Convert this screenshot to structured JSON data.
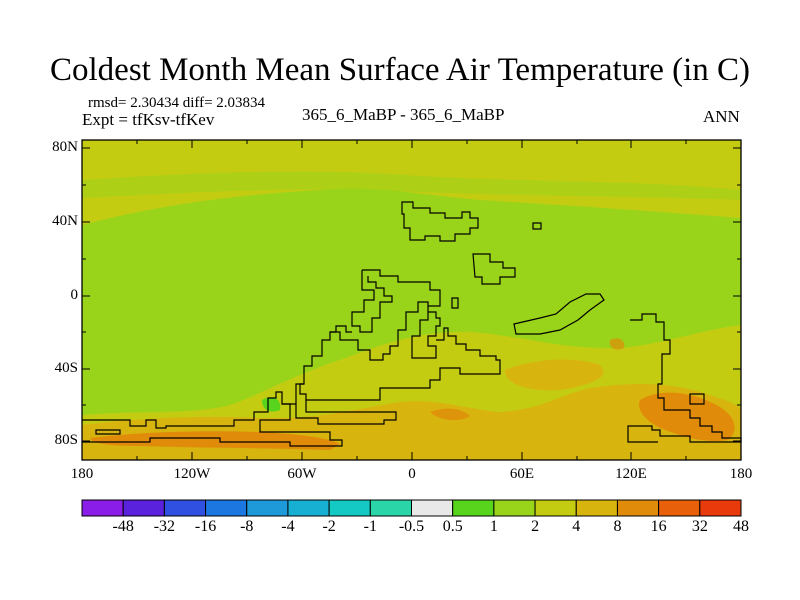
{
  "title": "Coldest Month Mean Surface Air Temperature (in C)",
  "stats": "rmsd= 2.30434 diff= 2.03834",
  "experiment": "Expt = tfKsv-tfKev",
  "case": "365_6_MaBP - 365_6_MaBP",
  "period": "ANN",
  "y_axis": {
    "ticks": [
      "80N",
      "40N",
      "0",
      "40S",
      "80S"
    ]
  },
  "x_axis": {
    "ticks": [
      "180",
      "120W",
      "60W",
      "0",
      "60E",
      "120E",
      "180"
    ]
  },
  "colorbar": {
    "labels": [
      "-48",
      "-32",
      "-16",
      "-8",
      "-4",
      "-2",
      "-1",
      "-0.5",
      "0.5",
      "1",
      "2",
      "4",
      "8",
      "16",
      "32",
      "48"
    ],
    "colors": [
      "#8a1ee8",
      "#5a22dc",
      "#2f50e0",
      "#1c78e0",
      "#1f9ad8",
      "#18b0d2",
      "#14c8c4",
      "#2ad6a8",
      "#e8e8e8",
      "#58d41c",
      "#9ad41a",
      "#c4cc12",
      "#d8b40e",
      "#e08c0a",
      "#e8600a",
      "#e83a0a"
    ]
  },
  "field_colors": {
    "band_2_4": "#c4cc12",
    "band_1_2": "#9ad41a",
    "band_4_8": "#d8b40e",
    "band_8_16": "#e08c0a",
    "band_0_1": "#58d41c"
  }
}
